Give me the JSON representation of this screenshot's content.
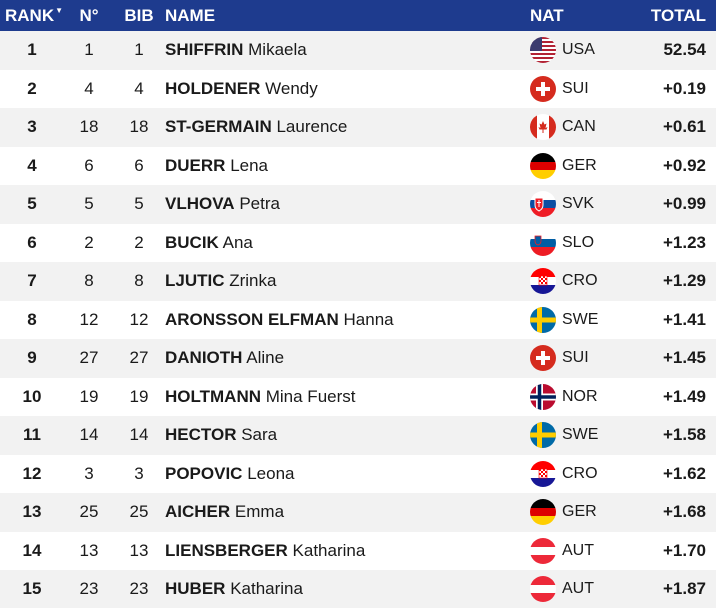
{
  "header": {
    "rank": "RANK",
    "no": "N°",
    "bib": "BIB",
    "name": "NAME",
    "nat": "NAT",
    "total": "TOTAL"
  },
  "rows": [
    {
      "rank": "1",
      "no": "1",
      "bib": "1",
      "surname": "SHIFFRIN",
      "first": "Mikaela",
      "nat": "USA",
      "total": "52.54"
    },
    {
      "rank": "2",
      "no": "4",
      "bib": "4",
      "surname": "HOLDENER",
      "first": "Wendy",
      "nat": "SUI",
      "total": "+0.19"
    },
    {
      "rank": "3",
      "no": "18",
      "bib": "18",
      "surname": "ST-GERMAIN",
      "first": "Laurence",
      "nat": "CAN",
      "total": "+0.61"
    },
    {
      "rank": "4",
      "no": "6",
      "bib": "6",
      "surname": "DUERR",
      "first": "Lena",
      "nat": "GER",
      "total": "+0.92"
    },
    {
      "rank": "5",
      "no": "5",
      "bib": "5",
      "surname": "VLHOVA",
      "first": "Petra",
      "nat": "SVK",
      "total": "+0.99"
    },
    {
      "rank": "6",
      "no": "2",
      "bib": "2",
      "surname": "BUCIK",
      "first": "Ana",
      "nat": "SLO",
      "total": "+1.23"
    },
    {
      "rank": "7",
      "no": "8",
      "bib": "8",
      "surname": "LJUTIC",
      "first": "Zrinka",
      "nat": "CRO",
      "total": "+1.29"
    },
    {
      "rank": "8",
      "no": "12",
      "bib": "12",
      "surname": "ARONSSON ELFMAN",
      "first": "Hanna",
      "nat": "SWE",
      "total": "+1.41"
    },
    {
      "rank": "9",
      "no": "27",
      "bib": "27",
      "surname": "DANIOTH",
      "first": "Aline",
      "nat": "SUI",
      "total": "+1.45"
    },
    {
      "rank": "10",
      "no": "19",
      "bib": "19",
      "surname": "HOLTMANN",
      "first": "Mina Fuerst",
      "nat": "NOR",
      "total": "+1.49"
    },
    {
      "rank": "11",
      "no": "14",
      "bib": "14",
      "surname": "HECTOR",
      "first": "Sara",
      "nat": "SWE",
      "total": "+1.58"
    },
    {
      "rank": "12",
      "no": "3",
      "bib": "3",
      "surname": "POPOVIC",
      "first": "Leona",
      "nat": "CRO",
      "total": "+1.62"
    },
    {
      "rank": "13",
      "no": "25",
      "bib": "25",
      "surname": "AICHER",
      "first": "Emma",
      "nat": "GER",
      "total": "+1.68"
    },
    {
      "rank": "14",
      "no": "13",
      "bib": "13",
      "surname": "LIENSBERGER",
      "first": "Katharina",
      "nat": "AUT",
      "total": "+1.70"
    },
    {
      "rank": "15",
      "no": "23",
      "bib": "23",
      "surname": "HUBER",
      "first": "Katharina",
      "nat": "AUT",
      "total": "+1.87"
    }
  ],
  "colors": {
    "header_bg": "#1e3b8e",
    "row_alt": "#f2f2f2"
  }
}
